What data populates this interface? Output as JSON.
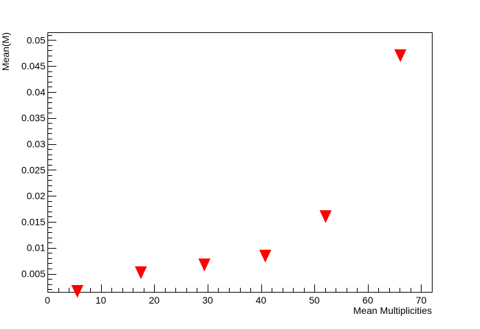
{
  "chart_data": {
    "type": "scatter",
    "xlabel": "Mean Multiplicities",
    "ylabel": "Mean(M)",
    "xlim": [
      0,
      72
    ],
    "ylim": [
      0.0015,
      0.0515
    ],
    "x_ticks": [
      0,
      10,
      20,
      30,
      40,
      50,
      60,
      70
    ],
    "x_tick_labels": [
      "0",
      "10",
      "20",
      "30",
      "40",
      "50",
      "60",
      "70"
    ],
    "y_ticks": [
      0.005,
      0.01,
      0.015,
      0.02,
      0.025,
      0.03,
      0.035,
      0.04,
      0.045,
      0.05
    ],
    "y_tick_labels": [
      "0.005",
      "0.01",
      "0.015",
      "0.02",
      "0.025",
      "0.03",
      "0.035",
      "0.04",
      "0.045",
      "0.05"
    ],
    "grid": false,
    "marker": "inverted-triangle",
    "series": [
      {
        "color": "#ff0000",
        "points": [
          {
            "x": 5.6,
            "y": 0.0017
          },
          {
            "x": 17.5,
            "y": 0.0053
          },
          {
            "x": 29.4,
            "y": 0.0068
          },
          {
            "x": 40.8,
            "y": 0.0085
          },
          {
            "x": 52.1,
            "y": 0.0161
          },
          {
            "x": 66.1,
            "y": 0.0471
          }
        ]
      }
    ]
  }
}
